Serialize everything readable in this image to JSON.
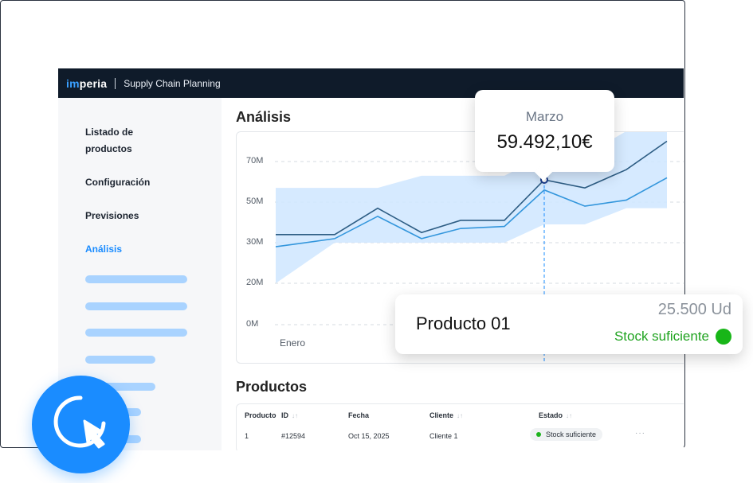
{
  "app": {
    "brand_prefix": "im",
    "brand_suffix": "peria",
    "product": "Supply Chain Planning"
  },
  "sidebar": {
    "items": [
      {
        "label": "Listado de"
      },
      {
        "label": "productos"
      },
      {
        "label": "Configuración"
      },
      {
        "label": "Previsiones"
      },
      {
        "label": "Análisis"
      }
    ]
  },
  "main": {
    "analysis_title": "Análisis",
    "products_title": "Productos"
  },
  "chart_data": {
    "type": "line",
    "y_ticks": [
      "70M",
      "50M",
      "30M",
      "20M",
      "0M"
    ],
    "x_first_label": "Enero",
    "series": [
      {
        "values": [
          34,
          34,
          47,
          35,
          41,
          41,
          61,
          57,
          66,
          80
        ]
      },
      {
        "values": [
          29,
          32,
          43,
          32,
          37,
          38,
          56,
          48,
          51,
          62
        ]
      }
    ],
    "band_upper": [
      57,
      57,
      57,
      63,
      63,
      63,
      73,
      73,
      85,
      90
    ],
    "band_lower": [
      20,
      30,
      30,
      30,
      30,
      30,
      39,
      39,
      47,
      47
    ],
    "highlight": {
      "month": "Marzo",
      "value": "59.492,10€"
    }
  },
  "table": {
    "headers": [
      "Producto",
      "ID",
      "Fecha",
      "Cliente",
      "Estado"
    ],
    "rows": [
      {
        "producto": "1",
        "id": "#12594",
        "fecha": "Oct 15, 2025",
        "cliente": "Cliente 1",
        "estado": "Stock suficiente",
        "more": "···"
      }
    ]
  },
  "card": {
    "product": "Producto 01",
    "quantity": "25.500 Ud",
    "stock": "Stock suficiente"
  },
  "colors": {
    "accent": "#1a8cff",
    "topbar": "#0f1b2a",
    "series_dark": "#2d5d84",
    "series_light": "#3396dc",
    "band": "#cfe6ff",
    "ok": "#1fa31f"
  }
}
